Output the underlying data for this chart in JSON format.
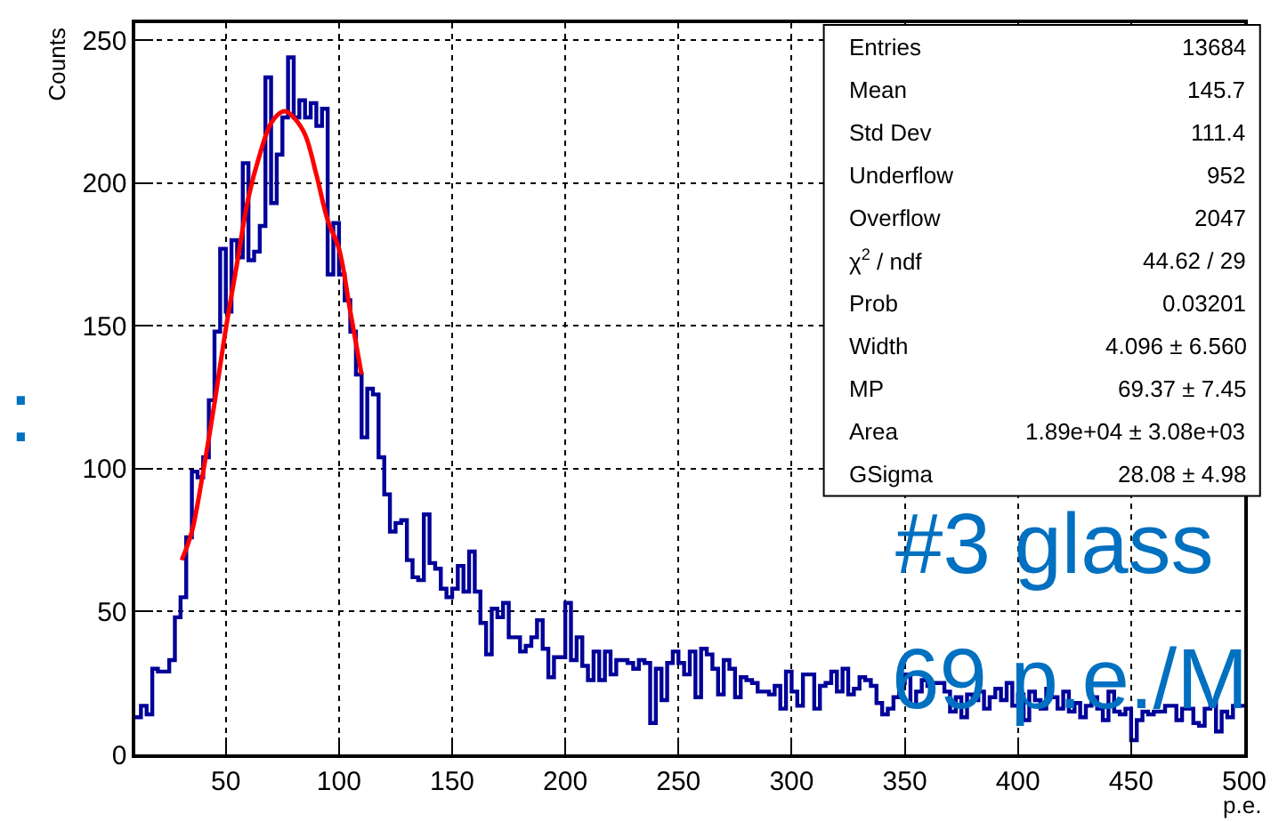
{
  "chart_data": {
    "type": "histogram",
    "xlabel": "p.e.",
    "ylabel": "Counts",
    "xlim": [
      10,
      500
    ],
    "ylim": [
      0,
      256
    ],
    "xticks": [
      50,
      100,
      150,
      200,
      250,
      300,
      350,
      400,
      450,
      500
    ],
    "yticks": [
      0,
      50,
      100,
      150,
      200,
      250
    ],
    "grid": true,
    "series": [
      {
        "type": "histogram",
        "color": "#000099",
        "bins": [
          10,
          12.5,
          15,
          17.5,
          20,
          22.5,
          25,
          27.5,
          30,
          32.5,
          35,
          37.5,
          40,
          42.5,
          45,
          47.5,
          50,
          52.5,
          55,
          57.5,
          60,
          62.5,
          65,
          67.5,
          70,
          72.5,
          75,
          77.5,
          80,
          82.5,
          85,
          87.5,
          90,
          92.5,
          95,
          97.5,
          100,
          102.5,
          105,
          107.5,
          110,
          112.5,
          115,
          117.5,
          120,
          122.5,
          125,
          127.5,
          130,
          132.5,
          135,
          137.5,
          140,
          142.5,
          145,
          147.5,
          150,
          152.5,
          155,
          157.5,
          160,
          162.5,
          165,
          167.5,
          170,
          172.5,
          175,
          177.5,
          180,
          182.5,
          185,
          187.5,
          190,
          192.5,
          195,
          197.5,
          200,
          202.5,
          205,
          207.5,
          210,
          212.5,
          215,
          217.5,
          220,
          222.5,
          225,
          227.5,
          230,
          232.5,
          235,
          237.5,
          240,
          242.5,
          245,
          247.5,
          250,
          252.5,
          255,
          257.5,
          260,
          262.5,
          265,
          267.5,
          270,
          272.5,
          275,
          277.5,
          280,
          282.5,
          285,
          287.5,
          290,
          292.5,
          295,
          297.5,
          300,
          302.5,
          305,
          307.5,
          310,
          312.5,
          315,
          317.5,
          320,
          322.5,
          325,
          327.5,
          330,
          332.5,
          335,
          337.5,
          340,
          342.5,
          345,
          347.5,
          350,
          352.5,
          355,
          357.5,
          360,
          362.5,
          365,
          367.5,
          370,
          372.5,
          375,
          377.5,
          380,
          382.5,
          385,
          387.5,
          390,
          392.5,
          395,
          397.5,
          400,
          402.5,
          405,
          407.5,
          410,
          412.5,
          415,
          417.5,
          420,
          422.5,
          425,
          427.5,
          430,
          432.5,
          435,
          437.5,
          440,
          442.5,
          445,
          447.5,
          450,
          452.5,
          455,
          457.5,
          460,
          462.5,
          465,
          467.5,
          470,
          472.5,
          475,
          477.5,
          480,
          482.5,
          485,
          487.5,
          490,
          492.5,
          495,
          497.5,
          500
        ],
        "values": [
          13,
          17,
          14,
          30,
          29,
          29,
          33,
          48,
          55,
          76,
          99,
          97,
          104,
          124,
          148,
          177,
          155,
          180,
          174,
          207,
          173,
          176,
          185,
          237,
          193,
          210,
          223,
          244,
          223,
          229,
          223,
          228,
          220,
          226,
          168,
          186,
          168,
          159,
          148,
          133,
          111,
          128,
          126,
          104,
          91,
          78,
          81,
          82,
          68,
          62,
          61,
          84,
          67,
          65,
          58,
          55,
          58,
          66,
          57,
          71,
          57,
          46,
          35,
          51,
          48,
          53,
          41,
          41,
          36,
          38,
          41,
          47,
          37,
          27,
          34,
          34,
          53,
          33,
          41,
          31,
          26,
          36,
          26,
          36,
          28,
          33,
          33,
          32,
          30,
          33,
          32,
          11,
          30,
          19,
          32,
          36,
          32,
          28,
          36,
          20,
          37,
          35,
          30,
          21,
          33,
          30,
          20,
          27,
          26,
          25,
          22,
          22,
          21,
          24,
          16,
          29,
          22,
          17,
          28,
          28,
          16,
          24,
          25,
          29,
          22,
          30,
          21,
          23,
          27,
          26,
          24,
          18,
          14,
          16,
          20,
          25,
          28,
          17,
          22,
          26,
          24,
          25,
          25,
          22,
          15,
          20,
          13,
          21,
          19,
          22,
          16,
          20,
          23,
          19,
          25,
          17,
          21,
          12,
          22,
          19,
          16,
          23,
          20,
          16,
          22,
          15,
          18,
          13,
          17,
          20,
          16,
          12,
          22,
          15,
          14,
          16,
          5,
          12,
          15,
          14,
          15,
          15,
          17,
          17,
          12,
          16,
          16,
          11,
          10,
          16,
          18,
          8,
          15,
          13,
          17,
          17
        ]
      },
      {
        "type": "line",
        "color": "#ff0000",
        "x": [
          30.5,
          35,
          40,
          45,
          50,
          55,
          60,
          65,
          70,
          75,
          77,
          80,
          85,
          90,
          95,
          100,
          105,
          110
        ],
        "values": [
          68,
          78,
          99,
          123,
          149,
          172,
          195,
          210,
          221,
          225,
          225,
          223,
          217,
          203,
          187,
          177,
          155,
          133
        ]
      }
    ],
    "annotations": [
      ":",
      "#3 glass",
      "69 p.e./M",
      "Entries",
      "13684",
      "Mean",
      "145.7",
      "Std Dev",
      "111.4",
      "Underflow",
      "952",
      "Overflow",
      "2047",
      "χ$^{2}$ / ndf",
      "44.62 / 29",
      "Prob",
      "0.03201",
      "Width",
      "4.096 ± 6.560",
      "MP",
      "69.37 ± 7.45",
      "Area",
      "1.89e+04 ± 3.08e+03",
      "GSigma",
      "28.08 ± 4.98"
    ]
  }
}
